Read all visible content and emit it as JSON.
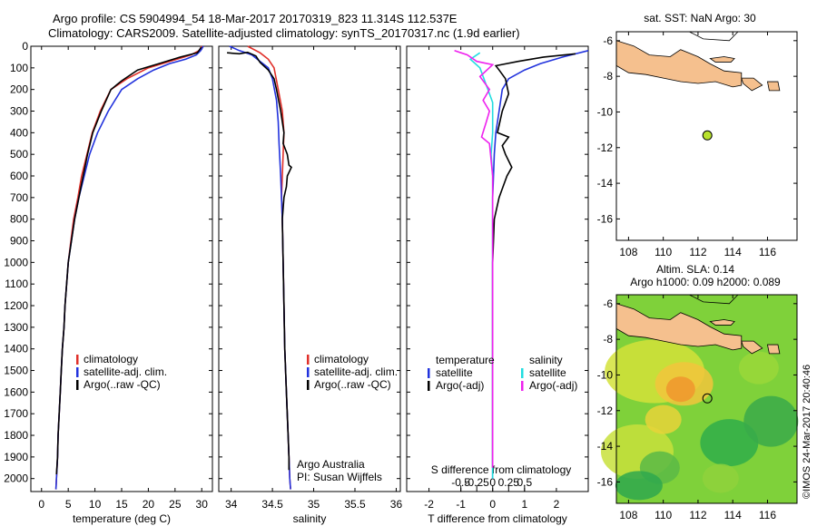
{
  "header": {
    "line1": "Argo profile: CS 5904994_54 18-Mar-2017 20170319_823 11.314S 112.537E",
    "line2": "Climatology: CARS2009. Satellite-adjusted climatology: synTS_20170317.nc (1.9d earlier)"
  },
  "colors": {
    "climatology": "#e0302a",
    "satellite": "#2233dd",
    "argo": "#000000",
    "sal_satellite": "#22dde0",
    "sal_argo": "#ee22ee",
    "land": "#f5c08e",
    "marker": "#b8e22c"
  },
  "depth_ticks": [
    0,
    100,
    200,
    300,
    400,
    500,
    600,
    700,
    800,
    900,
    1000,
    1100,
    1200,
    1300,
    1400,
    1500,
    1600,
    1700,
    1800,
    1900,
    2000
  ],
  "chart_data": [
    {
      "type": "line",
      "panel": "temperature",
      "xlabel": "temperature (deg C)",
      "x_ticks": [
        0,
        5,
        10,
        15,
        20,
        25,
        30
      ],
      "xlim": [
        -2,
        32
      ],
      "ylim": [
        2060,
        0
      ],
      "legend": [
        "climatology",
        "satellite-adj. clim.",
        "Argo(..raw -QC)"
      ],
      "series": [
        {
          "name": "climatology",
          "points": [
            [
              30,
              0
            ],
            [
              29.5,
              20
            ],
            [
              28,
              40
            ],
            [
              24,
              70
            ],
            [
              20,
              100
            ],
            [
              16,
              150
            ],
            [
              13,
              200
            ],
            [
              11,
              300
            ],
            [
              9.5,
              400
            ],
            [
              8.5,
              500
            ],
            [
              7.5,
              600
            ],
            [
              6.8,
              700
            ],
            [
              6,
              800
            ],
            [
              5.5,
              900
            ],
            [
              5,
              1000
            ],
            [
              4.7,
              1100
            ],
            [
              4.4,
              1200
            ],
            [
              4.2,
              1300
            ],
            [
              3.9,
              1400
            ],
            [
              3.7,
              1500
            ],
            [
              3.5,
              1600
            ],
            [
              3.3,
              1700
            ],
            [
              3.1,
              1800
            ],
            [
              3,
              1900
            ],
            [
              2.8,
              2000
            ],
            [
              2.7,
              2050
            ]
          ]
        },
        {
          "name": "satellite-adj. clim.",
          "points": [
            [
              30.3,
              0
            ],
            [
              29.8,
              20
            ],
            [
              29,
              40
            ],
            [
              27,
              60
            ],
            [
              24,
              80
            ],
            [
              21,
              110
            ],
            [
              18,
              150
            ],
            [
              15,
              200
            ],
            [
              12.5,
              300
            ],
            [
              10.5,
              400
            ],
            [
              9,
              500
            ],
            [
              8,
              600
            ],
            [
              7,
              700
            ],
            [
              6.2,
              800
            ],
            [
              5.6,
              900
            ],
            [
              5,
              1000
            ],
            [
              4.7,
              1100
            ],
            [
              4.4,
              1200
            ],
            [
              4.2,
              1300
            ],
            [
              3.9,
              1400
            ],
            [
              3.7,
              1500
            ],
            [
              3.5,
              1600
            ],
            [
              3.3,
              1700
            ],
            [
              3.1,
              1800
            ],
            [
              3,
              1900
            ],
            [
              2.8,
              2000
            ],
            [
              2.7,
              2050
            ]
          ]
        },
        {
          "name": "Argo(..raw -QC)",
          "points": [
            [
              29.9,
              5
            ],
            [
              29.2,
              30
            ],
            [
              26,
              50
            ],
            [
              22,
              80
            ],
            [
              18,
              110
            ],
            [
              15,
              160
            ],
            [
              13,
              200
            ],
            [
              11.2,
              300
            ],
            [
              9.6,
              400
            ],
            [
              8.6,
              500
            ],
            [
              7.8,
              600
            ],
            [
              7,
              700
            ],
            [
              6.2,
              800
            ],
            [
              5.6,
              900
            ],
            [
              5,
              1000
            ],
            [
              4.7,
              1100
            ],
            [
              4.4,
              1200
            ],
            [
              4.2,
              1300
            ],
            [
              3.9,
              1400
            ],
            [
              3.7,
              1500
            ],
            [
              3.5,
              1600
            ],
            [
              3.3,
              1700
            ],
            [
              3.1,
              1800
            ],
            [
              3,
              1900
            ],
            [
              2.8,
              1980
            ]
          ]
        }
      ]
    },
    {
      "type": "line",
      "panel": "salinity",
      "xlabel": "salinity",
      "x_ticks": [
        34,
        34.5,
        35,
        35.5,
        36
      ],
      "xlim": [
        33.85,
        36.05
      ],
      "ylim": [
        2060,
        0
      ],
      "legend": [
        "climatology",
        "satellite-adj. clim.",
        "Argo(..raw -QC)"
      ],
      "notes": [
        "Argo Australia",
        "PI: Susan Wijffels"
      ],
      "series": [
        {
          "name": "climatology",
          "points": [
            [
              34.2,
              0
            ],
            [
              34.35,
              30
            ],
            [
              34.45,
              60
            ],
            [
              34.52,
              100
            ],
            [
              34.57,
              200
            ],
            [
              34.62,
              300
            ],
            [
              34.64,
              400
            ],
            [
              34.63,
              500
            ],
            [
              34.62,
              600
            ],
            [
              34.61,
              700
            ],
            [
              34.62,
              800
            ],
            [
              34.63,
              1000
            ],
            [
              34.64,
              1200
            ],
            [
              34.65,
              1400
            ],
            [
              34.67,
              1600
            ],
            [
              34.69,
              1800
            ],
            [
              34.71,
              2000
            ],
            [
              34.72,
              2050
            ]
          ]
        },
        {
          "name": "satellite-adj. clim.",
          "points": [
            [
              33.98,
              0
            ],
            [
              34.1,
              20
            ],
            [
              34.25,
              40
            ],
            [
              34.35,
              70
            ],
            [
              34.45,
              100
            ],
            [
              34.5,
              150
            ],
            [
              34.55,
              250
            ],
            [
              34.57,
              350
            ],
            [
              34.58,
              450
            ],
            [
              34.6,
              600
            ],
            [
              34.62,
              800
            ],
            [
              34.63,
              1000
            ],
            [
              34.64,
              1200
            ],
            [
              34.65,
              1400
            ],
            [
              34.67,
              1600
            ],
            [
              34.69,
              1800
            ],
            [
              34.71,
              2000
            ],
            [
              34.72,
              2050
            ]
          ]
        },
        {
          "name": "Argo(..raw -QC)",
          "points": [
            [
              33.95,
              30
            ],
            [
              34.1,
              35
            ],
            [
              34.2,
              28
            ],
            [
              34.3,
              45
            ],
            [
              34.35,
              75
            ],
            [
              34.45,
              110
            ],
            [
              34.52,
              150
            ],
            [
              34.55,
              200
            ],
            [
              34.6,
              300
            ],
            [
              34.62,
              350
            ],
            [
              34.64,
              400
            ],
            [
              34.63,
              450
            ],
            [
              34.68,
              500
            ],
            [
              34.7,
              550
            ],
            [
              34.73,
              560
            ],
            [
              34.68,
              600
            ],
            [
              34.67,
              650
            ],
            [
              34.64,
              700
            ],
            [
              34.62,
              800
            ],
            [
              34.63,
              1000
            ],
            [
              34.64,
              1200
            ],
            [
              34.65,
              1400
            ],
            [
              34.67,
              1600
            ],
            [
              34.69,
              1800
            ],
            [
              34.7,
              1900
            ],
            [
              34.7,
              1960
            ]
          ]
        }
      ]
    },
    {
      "type": "line",
      "panel": "difference",
      "xlabel": "T difference from climatology",
      "x2label": "S difference from climatology",
      "x_ticks": [
        -2,
        -1,
        0,
        1,
        2
      ],
      "s_ticks": [
        -0.5,
        -0.25,
        0,
        0.25,
        0.5
      ],
      "s_tick_labels": [
        "-0.5",
        "-0.25",
        "0",
        "0.25",
        "0.5"
      ],
      "xlim": [
        -2.7,
        3
      ],
      "ylim": [
        2060,
        0
      ],
      "legend_left_title": "temperature",
      "legend_right_title": "salinity",
      "legend_left": [
        "satellite",
        "Argo(-adj)"
      ],
      "legend_right": [
        "satellite",
        "Argo(-adj)"
      ],
      "series": [
        {
          "name": "temperature satellite",
          "points": [
            [
              3,
              20
            ],
            [
              2.2,
              50
            ],
            [
              1.5,
              80
            ],
            [
              1,
              110
            ],
            [
              0.5,
              150
            ],
            [
              0.3,
              200
            ],
            [
              0.2,
              300
            ],
            [
              0.1,
              400
            ],
            [
              0.05,
              500
            ],
            [
              0,
              700
            ],
            [
              0,
              1000
            ],
            [
              0,
              1500
            ],
            [
              0,
              2000
            ]
          ]
        },
        {
          "name": "temperature Argo(-adj)",
          "points": [
            [
              2.6,
              35
            ],
            [
              1.6,
              50
            ],
            [
              0.8,
              70
            ],
            [
              0.1,
              90
            ],
            [
              0.2,
              110
            ],
            [
              0.4,
              150
            ],
            [
              0.5,
              220
            ],
            [
              0.3,
              300
            ],
            [
              0.15,
              400
            ],
            [
              0.5,
              420
            ],
            [
              0.3,
              460
            ],
            [
              0.4,
              500
            ],
            [
              0.6,
              560
            ],
            [
              0.45,
              600
            ],
            [
              0.35,
              640
            ],
            [
              0.2,
              700
            ],
            [
              0.05,
              800
            ],
            [
              0,
              1000
            ],
            [
              0,
              1500
            ],
            [
              0,
              1950
            ]
          ]
        },
        {
          "name": "salinity satellite",
          "points": [
            [
              -0.4,
              30
            ],
            [
              -0.7,
              60
            ],
            [
              -0.4,
              100
            ],
            [
              -0.2,
              180
            ],
            [
              0,
              260
            ],
            [
              0,
              400
            ],
            [
              -0.05,
              500
            ],
            [
              0,
              600
            ],
            [
              0,
              800
            ],
            [
              0,
              1200
            ],
            [
              0,
              1600
            ],
            [
              0,
              2000
            ]
          ]
        },
        {
          "name": "salinity Argo(-adj)",
          "points": [
            [
              -1.2,
              20
            ],
            [
              -0.8,
              40
            ],
            [
              -0.5,
              70
            ],
            [
              0,
              85
            ],
            [
              -0.4,
              140
            ],
            [
              -0.1,
              200
            ],
            [
              -0.3,
              250
            ],
            [
              -0.1,
              300
            ],
            [
              -0.2,
              350
            ],
            [
              -0.35,
              420
            ],
            [
              -0.1,
              450
            ],
            [
              0,
              600
            ],
            [
              0,
              1000
            ],
            [
              0,
              1500
            ],
            [
              0,
              1950
            ]
          ]
        }
      ]
    }
  ],
  "map_top": {
    "title": "sat. SST: NaN Argo: 30",
    "x_ticks": [
      108,
      110,
      112,
      114,
      116
    ],
    "y_ticks": [
      -6,
      -8,
      -10,
      -12,
      -14,
      -16
    ],
    "marker_lon": 112.537,
    "marker_lat": -11.314
  },
  "map_bottom": {
    "title1": "Altim. SLA: 0.14",
    "title2": "Argo h1000: 0.09 h2000: 0.089",
    "x_ticks": [
      108,
      110,
      112,
      114,
      116
    ],
    "y_ticks": [
      -6,
      -8,
      -10,
      -12,
      -14,
      -16
    ],
    "marker_lon": 112.537,
    "marker_lat": -11.314
  },
  "footer": {
    "copyright": "©IMOS 24-Mar-2017 20:40:46"
  }
}
